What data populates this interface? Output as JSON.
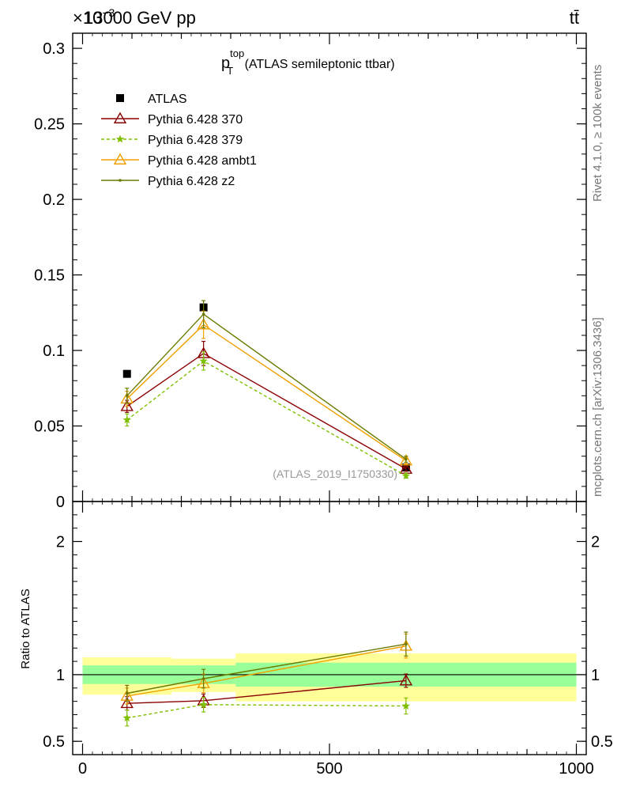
{
  "header": {
    "left_title": "13000 GeV pp",
    "right_title": "tt̄",
    "exponent_label": "×10",
    "exponent_power": "−3"
  },
  "plot_title": {
    "main": "p",
    "sub": "T",
    "sup": "top",
    "rest": " (ATLAS semileptonic ttbar)"
  },
  "side_labels": {
    "rivet": "Rivet 4.1.0, ≥ 100k events",
    "mcplots": "mcplots.cern.ch [arXiv:1306.3436]"
  },
  "analysis_id": "(ATLAS_2019_I1750330)",
  "ratio_ylabel": "Ratio to ATLAS",
  "colors": {
    "atlas": "#000000",
    "p370": "#8b0000",
    "p379": "#7fbf00",
    "ambt1": "#f0a000",
    "z2": "#6b7a00",
    "band_inner": "#99ff99",
    "band_outer": "#ffff99"
  },
  "chart_data": [
    {
      "type": "scatter",
      "panel": "main",
      "title": "p_T^top (ATLAS semileptonic ttbar)",
      "xlabel": "",
      "ylabel": "",
      "xlim": [
        -20,
        1020
      ],
      "ylim": [
        0,
        0.31
      ],
      "y_scale_note": "×10^-3",
      "y_ticks": [
        0,
        0.05,
        0.1,
        0.15,
        0.2,
        0.25,
        0.3
      ],
      "y_tick_labels": [
        "0",
        "0.05",
        "0.1",
        "0.15",
        "0.2",
        "0.25",
        "0.3"
      ],
      "x": [
        90,
        245,
        655
      ],
      "x_bins": [
        [
          0,
          180
        ],
        [
          180,
          310
        ],
        [
          310,
          1000
        ]
      ],
      "legend": [
        "ATLAS",
        "Pythia 6.428 370",
        "Pythia 6.428 379",
        "Pythia 6.428 ambt1",
        "Pythia 6.428 z2"
      ],
      "series": [
        {
          "name": "ATLAS",
          "key": "atlas",
          "marker": "square",
          "values": [
            0.0845,
            0.1285,
            0.0225
          ]
        },
        {
          "name": "Pythia 6.428 370",
          "key": "p370",
          "marker": "triangle-open",
          "values": [
            0.063,
            0.098,
            0.0215
          ],
          "errors": [
            0.004,
            0.008,
            0.0015
          ]
        },
        {
          "name": "Pythia 6.428 379",
          "key": "p379",
          "marker": "star",
          "dashed": true,
          "values": [
            0.054,
            0.093,
            0.017
          ],
          "errors": [
            0.004,
            0.006,
            0.0015
          ]
        },
        {
          "name": "Pythia 6.428 ambt1",
          "key": "ambt1",
          "marker": "triangle-open",
          "values": [
            0.068,
            0.117,
            0.027
          ],
          "errors": [
            0.005,
            0.009,
            0.002
          ]
        },
        {
          "name": "Pythia 6.428 z2",
          "key": "z2",
          "marker": "dot",
          "values": [
            0.07,
            0.124,
            0.028
          ],
          "errors": [
            0.005,
            0.009,
            0.002
          ]
        }
      ]
    },
    {
      "type": "scatter",
      "panel": "ratio",
      "xlabel": "",
      "ylabel": "Ratio to ATLAS",
      "xlim": [
        -20,
        1020
      ],
      "ylim": [
        0.4,
        2.3
      ],
      "y_ticks": [
        0.5,
        1,
        2
      ],
      "y_tick_labels": [
        "0.5",
        "1",
        "2"
      ],
      "x_ticks": [
        0,
        500,
        1000
      ],
      "x_tick_labels": [
        "0",
        "500",
        "1000"
      ],
      "x": [
        90,
        245,
        655
      ],
      "band_inner": [
        [
          0.93,
          1.07
        ],
        [
          0.93,
          1.07
        ],
        [
          0.91,
          1.09
        ]
      ],
      "band_outer": [
        [
          0.85,
          1.13
        ],
        [
          0.87,
          1.12
        ],
        [
          0.8,
          1.16
        ]
      ],
      "series": [
        {
          "name": "Pythia 6.428 370",
          "key": "p370",
          "marker": "triangle-open",
          "values": [
            0.785,
            0.805,
            0.955
          ],
          "errors": [
            0.05,
            0.05,
            0.05
          ]
        },
        {
          "name": "Pythia 6.428 379",
          "key": "p379",
          "marker": "star",
          "dashed": true,
          "values": [
            0.675,
            0.775,
            0.765
          ],
          "errors": [
            0.06,
            0.055,
            0.06
          ]
        },
        {
          "name": "Pythia 6.428 ambt1",
          "key": "ambt1",
          "marker": "triangle-open",
          "values": [
            0.84,
            0.935,
            1.215
          ],
          "errors": [
            0.06,
            0.07,
            0.09
          ]
        },
        {
          "name": "Pythia 6.428 z2",
          "key": "z2",
          "marker": "dot",
          "values": [
            0.86,
            0.97,
            1.23
          ],
          "errors": [
            0.06,
            0.07,
            0.09
          ]
        }
      ]
    }
  ]
}
